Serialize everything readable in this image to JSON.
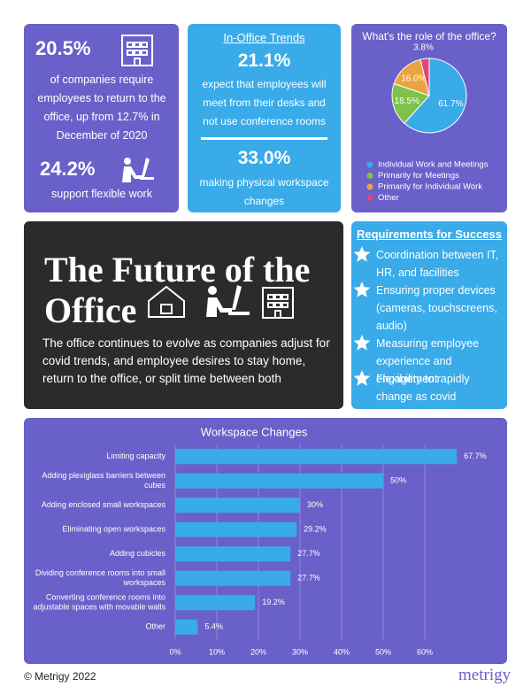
{
  "stat_panel": {
    "stat1_value": "20.5%",
    "stat1_text": "of companies require employees to return to the office, up from 12.7% in December of 2020",
    "stat2_value": "24.2%",
    "stat2_text": "support flexible work"
  },
  "trends_panel": {
    "title": "In-Office Trends",
    "stat1_value": "21.1%",
    "stat1_text": "expect that employees will meet from their desks and not use conference rooms",
    "stat2_value": "33.0%",
    "stat2_text": "making physical workspace changes"
  },
  "hero": {
    "title": "The Future of the Office",
    "text": "The office continues to evolve as companies adjust for covid trends, and employee desires to stay home, return to the office, or split time between both"
  },
  "requirements": {
    "title": "Requirements for Success",
    "items": [
      "Coordination between IT, HR, and facilities",
      "Ensuring proper devices (cameras, touchscreens, audio)",
      "Measuring employee experience and engagement",
      "Flexibility to rapidly change as covid conditions warrant"
    ]
  },
  "chart_data": [
    {
      "type": "pie",
      "title": "What's the role of the office?",
      "categories": [
        "Individual Work and Meetings",
        "Primarily for Meetings",
        "Primarily for Individual Work",
        "Other"
      ],
      "values": [
        61.7,
        18.5,
        16.0,
        3.8
      ],
      "value_labels": [
        "61.7%",
        "18.5%",
        "16.0%",
        "3.8%"
      ],
      "colors": [
        "#39abe9",
        "#7dc24b",
        "#e9a441",
        "#e0457c"
      ]
    },
    {
      "type": "hbar",
      "title": "Workspace Changes",
      "categories": [
        "Limiting capacity",
        "Adding plexiglass barriers between cubes",
        "Adding enclosed small workspaces",
        "Eliminating open workspaces",
        "Adding cubicles",
        "Dividing conference rooms into small workspaces",
        "Converting conference rooms into adjustable spaces with movable walls",
        "Other"
      ],
      "values": [
        67.7,
        50,
        30,
        29.2,
        27.7,
        27.7,
        19.2,
        5.4
      ],
      "value_labels": [
        "67.7%",
        "50%",
        "30%",
        "29.2%",
        "27.7%",
        "27.7%",
        "19.2%",
        "5.4%"
      ],
      "color": "#39abe9",
      "xlim": [
        0,
        70
      ],
      "xticks": [
        {
          "value": 0,
          "label": "0%"
        },
        {
          "value": 10,
          "label": "10%"
        },
        {
          "value": 20,
          "label": "20%"
        },
        {
          "value": 30,
          "label": "30%"
        },
        {
          "value": 40,
          "label": "40%"
        },
        {
          "value": 50,
          "label": "50%"
        },
        {
          "value": 60,
          "label": "60%"
        }
      ],
      "grid": true
    }
  ],
  "footer": {
    "copyright": "© Metrigy 2022",
    "brand": "metrigy"
  }
}
